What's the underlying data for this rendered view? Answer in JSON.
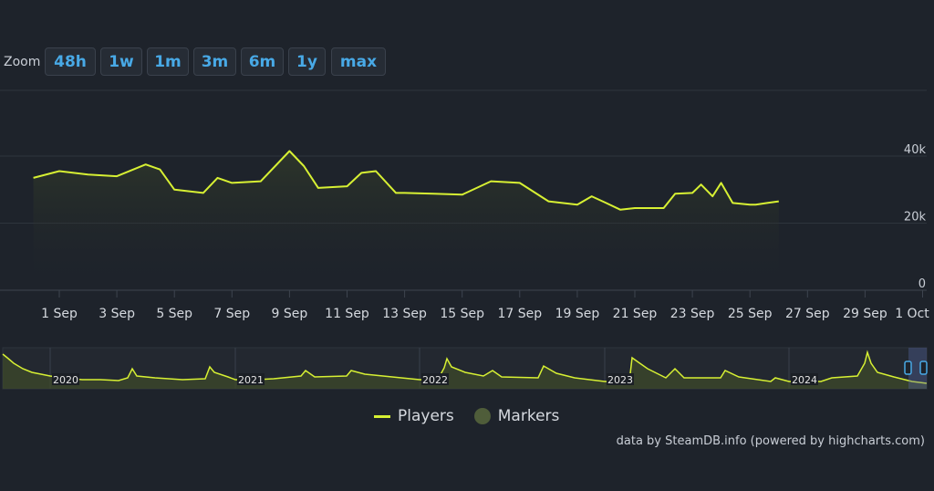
{
  "zoom": {
    "label": "Zoom",
    "buttons": [
      "48h",
      "1w",
      "1m",
      "3m",
      "6m",
      "1y",
      "max"
    ]
  },
  "colors": {
    "background": "#1e232b",
    "series": "#d7f033",
    "markers": "#4f5d3a",
    "zoom_text": "#48a9e6"
  },
  "chart_data": {
    "type": "line",
    "title": "",
    "xlabel": "",
    "ylabel": "",
    "x_ticks": [
      "1 Sep",
      "3 Sep",
      "5 Sep",
      "7 Sep",
      "9 Sep",
      "11 Sep",
      "13 Sep",
      "15 Sep",
      "17 Sep",
      "19 Sep",
      "21 Sep",
      "23 Sep",
      "25 Sep",
      "27 Sep",
      "29 Sep",
      "1 Oct"
    ],
    "y_ticks": [
      "0",
      "20k",
      "40k"
    ],
    "ylim": [
      0,
      40000
    ],
    "grid": true,
    "series": [
      {
        "name": "Players",
        "x": [
          -0.9,
          0,
          1,
          2,
          3,
          3.5,
          4,
          5,
          5.5,
          6,
          7,
          8,
          8.5,
          9,
          10,
          10.5,
          11,
          11.7,
          12,
          13,
          14,
          15,
          16,
          17,
          18,
          18.5,
          19,
          19.5,
          20,
          21,
          21.4,
          22,
          22.3,
          22.7,
          23,
          23.4,
          24,
          24.2,
          24.6,
          25
        ],
        "values": [
          33500,
          35500,
          34500,
          34000,
          37500,
          36000,
          30000,
          29000,
          33500,
          32000,
          32500,
          41500,
          37000,
          30500,
          31000,
          35000,
          35500,
          29000,
          29000,
          28800,
          28500,
          32500,
          32000,
          26500,
          25500,
          28000,
          26000,
          24000,
          24500,
          24500,
          28800,
          29000,
          31500,
          28000,
          32000,
          26000,
          25500,
          25500,
          26000,
          26500
        ]
      },
      {
        "name": "Markers",
        "values": []
      }
    ],
    "navigator": {
      "labels": [
        "2020",
        "2021",
        "2022",
        "2023",
        "2024"
      ]
    }
  },
  "legend": {
    "players": "Players",
    "markers": "Markers"
  },
  "credit": "data by SteamDB.info (powered by highcharts.com)"
}
